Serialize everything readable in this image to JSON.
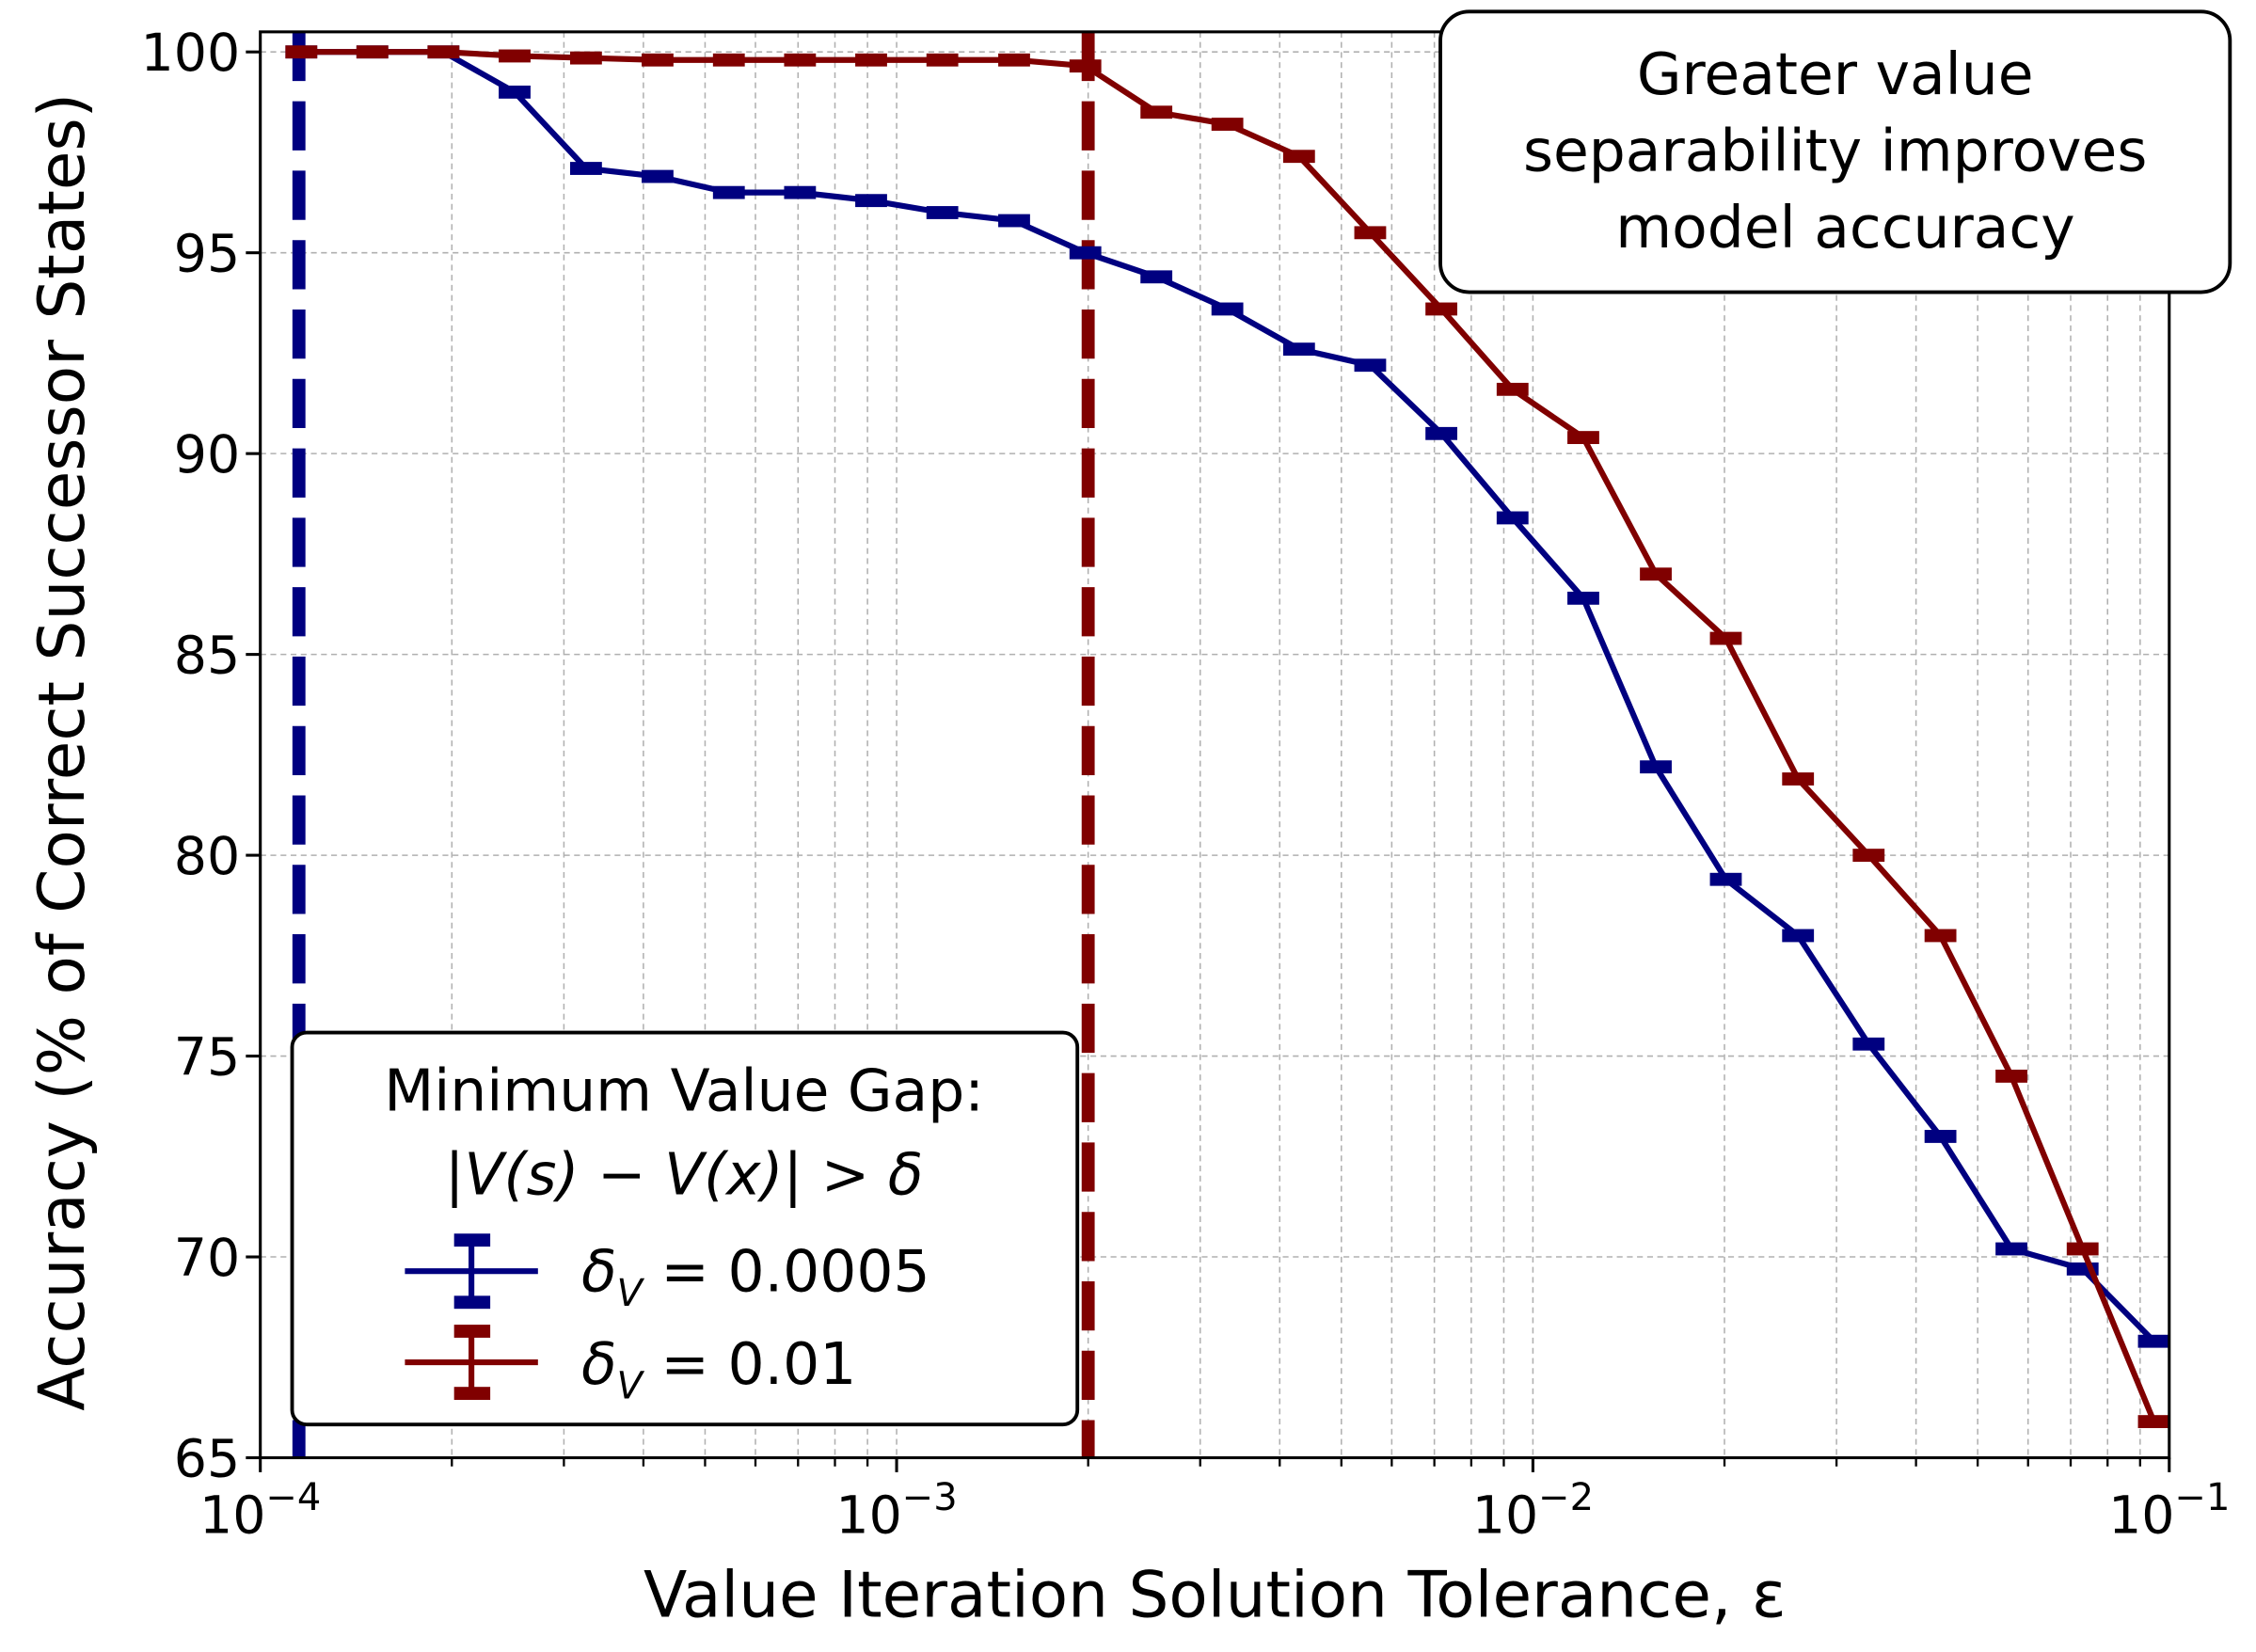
{
  "chart_data": {
    "type": "line",
    "xlabel": "Value Iteration Solution Tolerance, ε",
    "ylabel": "Accuracy (% of Correct Successor States)",
    "xscale": "log",
    "xlim": [
      0.0001,
      0.1
    ],
    "ylim": [
      65,
      100.5
    ],
    "grid": "major and minor, dashed gray",
    "x_ticks": [
      {
        "base": "10",
        "exp": "−4"
      },
      {
        "base": "10",
        "exp": "−3"
      },
      {
        "base": "10",
        "exp": "−2"
      },
      {
        "base": "10",
        "exp": "−1"
      }
    ],
    "y_ticks": [
      "65",
      "70",
      "75",
      "80",
      "85",
      "90",
      "95",
      "100"
    ],
    "x": [
      0.000116,
      0.00015,
      0.000194,
      0.000251,
      0.000325,
      0.000421,
      0.000545,
      0.000705,
      0.000912,
      0.00118,
      0.00153,
      0.00198,
      0.00256,
      0.00331,
      0.00429,
      0.00555,
      0.00718,
      0.00929,
      0.012,
      0.0156,
      0.0201,
      0.0261,
      0.0337,
      0.0437,
      0.0565,
      0.0731,
      0.0946
    ],
    "series": [
      {
        "name": "δV = 0.0005",
        "color": "#000080",
        "values": [
          100,
          100,
          100,
          99.0,
          97.1,
          96.9,
          96.5,
          96.5,
          96.3,
          96.0,
          95.8,
          95.0,
          94.4,
          93.6,
          92.6,
          92.2,
          90.5,
          88.4,
          86.4,
          82.2,
          79.4,
          78.0,
          75.3,
          73.0,
          70.2,
          69.7,
          67.9
        ],
        "threshold_line_x": 0.000115
      },
      {
        "name": "δV = 0.01",
        "color": "#800000",
        "values": [
          100,
          100,
          100,
          99.9,
          99.85,
          99.8,
          99.8,
          99.8,
          99.8,
          99.8,
          99.8,
          99.65,
          98.5,
          98.2,
          97.4,
          95.5,
          93.6,
          91.6,
          90.4,
          87.0,
          85.4,
          81.9,
          80.0,
          78.0,
          74.5,
          70.2,
          65.9
        ],
        "threshold_line_x": 0.002
      }
    ],
    "legend": {
      "placement": "lower-left",
      "title_line1": "Minimum Value Gap:",
      "title_line2": "|V(s) − V(x)| > δ",
      "entries": [
        {
          "symbol": "δ",
          "sub": "V",
          "text": " = 0.0005"
        },
        {
          "symbol": "δ",
          "sub": "V",
          "text": " = 0.01"
        }
      ]
    },
    "annotation": {
      "placement": "top-right",
      "lines": [
        "Greater value",
        "separability improves",
        "model accuracy"
      ]
    }
  }
}
